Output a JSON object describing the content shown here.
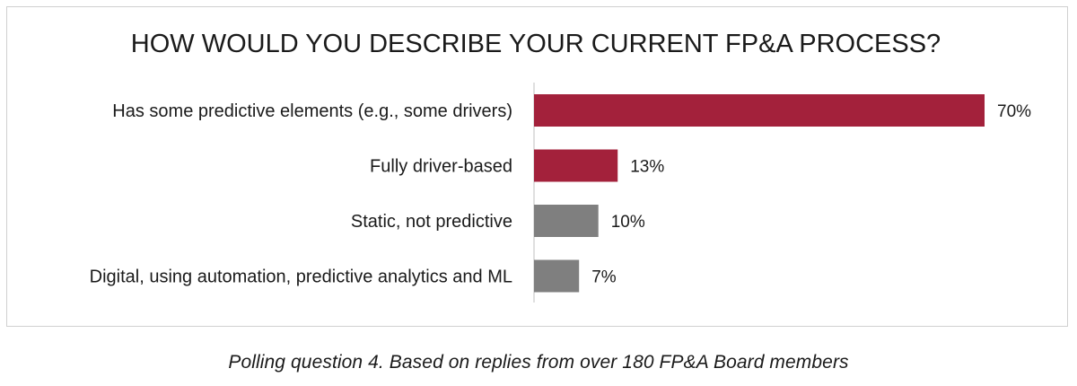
{
  "chart_data": {
    "type": "bar",
    "orientation": "horizontal",
    "title": "HOW WOULD YOU DESCRIBE YOUR CURRENT FP&A PROCESS?",
    "categories": [
      "Has some predictive elements (e.g., some drivers)",
      "Fully driver-based",
      "Static, not predictive",
      "Digital, using automation, predictive analytics and ML"
    ],
    "values": [
      70,
      13,
      10,
      7
    ],
    "data_labels": [
      "70%",
      "13%",
      "10%",
      "7%"
    ],
    "bar_colors": [
      "#a3213b",
      "#a3213b",
      "#7f7f7f",
      "#7f7f7f"
    ],
    "xlim": [
      0,
      70
    ],
    "grid": false,
    "legend": "none"
  },
  "caption": "Polling question 4. Based on replies from over 180 FP&A Board members"
}
